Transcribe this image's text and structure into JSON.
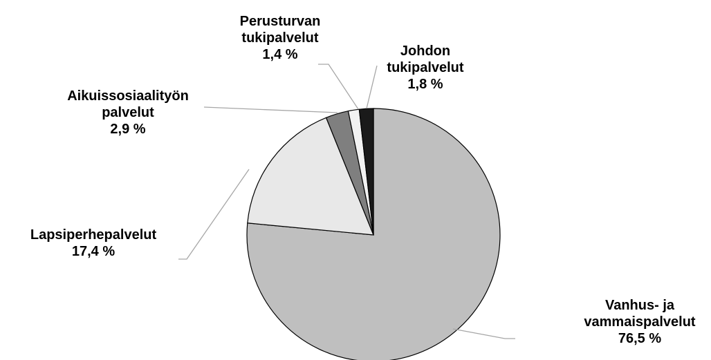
{
  "chart_data": {
    "type": "pie",
    "categories": [
      "Vanhus- ja vammaispalvelut",
      "Lapsiperhepalvelut",
      "Aikuissosiaalityön palvelut",
      "Perusturvan tukipalvelut",
      "Johdon tukipalvelut"
    ],
    "values": [
      76.5,
      17.4,
      2.9,
      1.4,
      1.8
    ],
    "value_labels": [
      "76,5 %",
      "17,4 %",
      "2,9 %",
      "1,4 %",
      "1,8 %"
    ],
    "colors": [
      "#bfbfbf",
      "#e8e8e8",
      "#7f7f7f",
      "#f2f2f2",
      "#1a1a1a"
    ]
  }
}
